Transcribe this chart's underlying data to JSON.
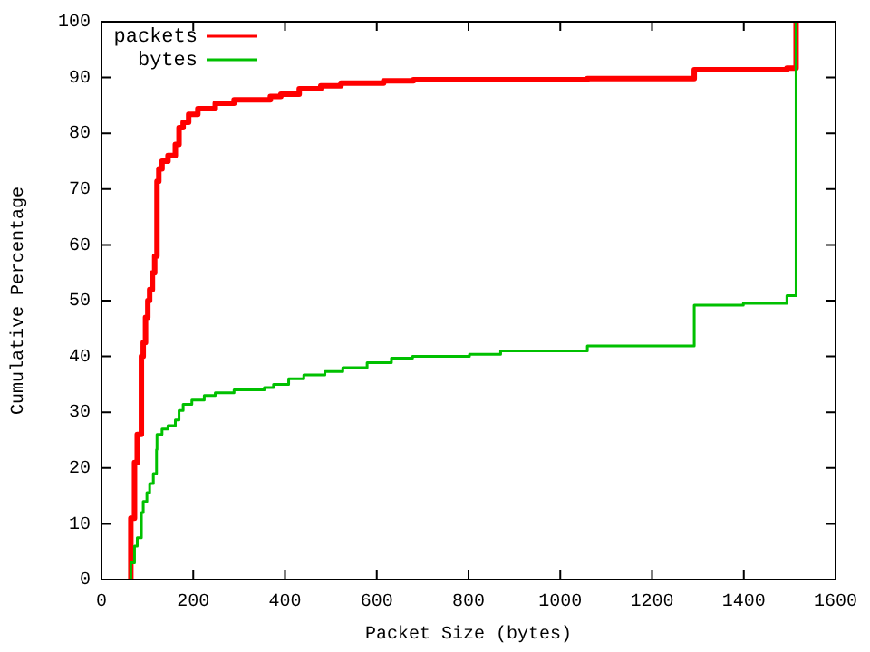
{
  "chart_data": {
    "type": "step",
    "xlabel": "Packet Size (bytes)",
    "ylabel": "Cumulative Percentage",
    "xlim": [
      0,
      1600
    ],
    "xticks": [
      0,
      200,
      400,
      600,
      800,
      1000,
      1200,
      1400,
      1600
    ],
    "ylim": [
      0,
      100
    ],
    "yticks": [
      0,
      10,
      20,
      30,
      40,
      50,
      60,
      70,
      80,
      90,
      100
    ],
    "grid": false,
    "legend": "top left",
    "marker": "none",
    "line_style": "solid",
    "series": [
      {
        "name": "packets",
        "color": "#ff0000",
        "x": [
          64,
          64,
          64,
          72,
          78,
          87,
          91,
          96,
          101,
          105,
          111,
          116,
          121,
          125,
          132,
          145,
          161,
          169,
          178,
          190,
          210,
          248,
          289,
          368,
          391,
          431,
          478,
          522,
          615,
          680,
          1059,
          1292,
          1494,
          1514
        ],
        "values": [
          0,
          3,
          11,
          21,
          26,
          40,
          42.5,
          47,
          50,
          52,
          55,
          58,
          71.4,
          73.6,
          75,
          76,
          78,
          81,
          82,
          83.4,
          84.4,
          85.4,
          86,
          86.6,
          87,
          88,
          88.5,
          89,
          89.4,
          89.6,
          89.8,
          91.4,
          91.7,
          100
        ]
      },
      {
        "name": "bytes",
        "color": "#00c000",
        "x": [
          64,
          64,
          72,
          78,
          87,
          91,
          99,
          105,
          113,
          120,
          121,
          132,
          145,
          161,
          169,
          178,
          197,
          224,
          248,
          289,
          355,
          375,
          408,
          441,
          487,
          526,
          579,
          632,
          678,
          802,
          870,
          1059,
          1292,
          1399,
          1494,
          1514
        ],
        "values": [
          0,
          3,
          6,
          7.5,
          12,
          14,
          15.6,
          17.2,
          19,
          23.3,
          26,
          27,
          27.6,
          28.6,
          30.3,
          31.4,
          32.2,
          33,
          33.5,
          34,
          34.4,
          35,
          36,
          36.7,
          37.3,
          38,
          38.9,
          39.7,
          40,
          40.4,
          41,
          41.9,
          49.2,
          49.5,
          50.9,
          100
        ]
      }
    ]
  }
}
